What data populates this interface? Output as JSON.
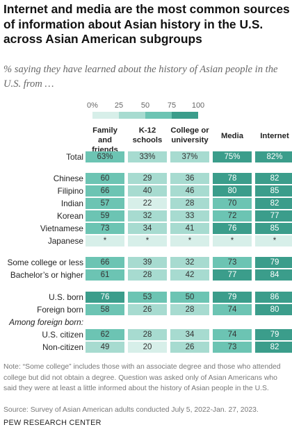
{
  "title": "Internet and media are the most common sources of information about Asian history in the U.S. across Asian American subgroups",
  "subtitle": "% saying they have learned about the history of Asian people in the U.S. from …",
  "legend": {
    "ticks": [
      "0%",
      "25",
      "50",
      "75",
      "100"
    ],
    "colors": [
      "#d7efe9",
      "#a7dbd0",
      "#6cc4b3",
      "#3b9d8b"
    ]
  },
  "chart_data": {
    "type": "table",
    "columns": [
      "Family and friends",
      "K-12 schools",
      "College or university",
      "Media",
      "Internet"
    ],
    "rows": [
      {
        "label": "Total",
        "values": [
          "63%",
          "33%",
          "37%",
          "75%",
          "82%"
        ]
      },
      {
        "label": "Chinese",
        "values": [
          60,
          29,
          36,
          78,
          82
        ]
      },
      {
        "label": "Filipino",
        "values": [
          66,
          40,
          46,
          80,
          85
        ]
      },
      {
        "label": "Indian",
        "values": [
          57,
          22,
          28,
          70,
          82
        ]
      },
      {
        "label": "Korean",
        "values": [
          59,
          32,
          33,
          72,
          77
        ]
      },
      {
        "label": "Vietnamese",
        "values": [
          73,
          34,
          41,
          76,
          85
        ]
      },
      {
        "label": "Japanese",
        "values": [
          "*",
          "*",
          "*",
          "*",
          "*"
        ]
      },
      {
        "label": "Some college or less",
        "values": [
          66,
          39,
          32,
          73,
          79
        ]
      },
      {
        "label": "Bachelor’s or higher",
        "values": [
          61,
          28,
          42,
          77,
          84
        ]
      },
      {
        "label": "U.S. born",
        "values": [
          76,
          53,
          50,
          79,
          86
        ]
      },
      {
        "label": "Foreign born",
        "values": [
          58,
          26,
          28,
          74,
          80
        ]
      },
      {
        "label": "Among foreign born:",
        "values": []
      },
      {
        "label": "U.S. citizen",
        "values": [
          62,
          28,
          34,
          74,
          79
        ]
      },
      {
        "label": "Non-citizen",
        "values": [
          49,
          20,
          26,
          73,
          82
        ]
      }
    ]
  },
  "footer": {
    "note": "Note: “Some college” includes those with an associate degree and those who attended college but did not obtain a degree. Question was asked only of Asian Americans who said they were at least a little informed about the history of Asian people in the U.S.",
    "source": "Source: Survey of Asian American adults conducted July 5, 2022-Jan. 27, 2023.",
    "brand": "PEW RESEARCH CENTER"
  }
}
